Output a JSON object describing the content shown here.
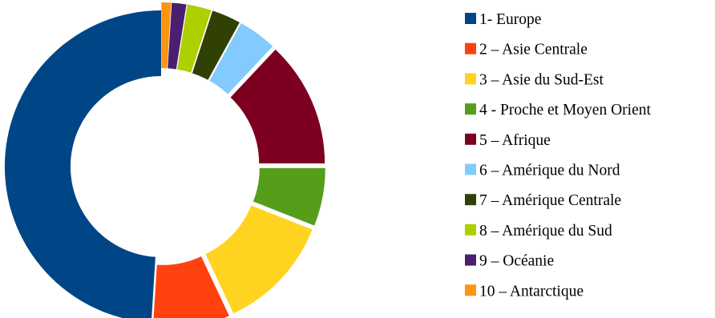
{
  "chart_data": {
    "type": "pie",
    "donut": true,
    "exploded": true,
    "title": "",
    "categories": [
      "1- Europe",
      "2 – Asie Centrale",
      "3 – Asie du Sud-Est",
      "4 - Proche et Moyen Orient",
      "5 – Afrique",
      "6 – Amérique du Nord",
      "7 – Amérique Centrale",
      "8 – Amérique du Sud",
      "9 – Océanie",
      "10 – Antarctique"
    ],
    "values": [
      49,
      8,
      12,
      6,
      13,
      4,
      3,
      2.5,
      1.5,
      1
    ],
    "colors": [
      "#004586",
      "#ff420e",
      "#ffd320",
      "#579d1c",
      "#7e0021",
      "#83caff",
      "#314004",
      "#aecf00",
      "#4b1f6f",
      "#ff950e"
    ],
    "legend_position": "right"
  }
}
